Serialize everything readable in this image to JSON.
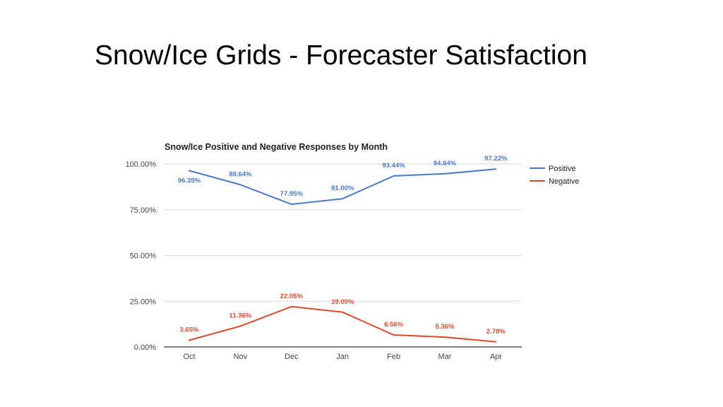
{
  "slide": {
    "title": "Snow/Ice Grids - Forecaster Satisfaction"
  },
  "chart_data": {
    "type": "line",
    "title": "Snow/Ice Positive and Negative Responses by Month",
    "xlabel": "",
    "ylabel": "",
    "categories": [
      "Oct",
      "Nov",
      "Dec",
      "Jan",
      "Feb",
      "Mar",
      "Apr"
    ],
    "ylim": [
      0,
      100
    ],
    "yticks": [
      "0.00%",
      "25.00%",
      "50.00%",
      "75.00%",
      "100.00%"
    ],
    "grid": true,
    "legend_position": "right",
    "series": [
      {
        "name": "Positive",
        "color": "#4a78c8",
        "values": [
          96.35,
          88.64,
          77.95,
          81.0,
          93.44,
          94.64,
          97.22
        ],
        "labels": [
          "96.35%",
          "88.64%",
          "77.95%",
          "81.00%",
          "93.44%",
          "94.64%",
          "97.22%"
        ]
      },
      {
        "name": "Negative",
        "color": "#dc4b2f",
        "values": [
          3.65,
          11.36,
          22.05,
          19.0,
          6.56,
          5.36,
          2.78
        ],
        "labels": [
          "3.65%",
          "11.36%",
          "22.05%",
          "19.00%",
          "6.56%",
          "5.36%",
          "2.78%"
        ]
      }
    ]
  }
}
